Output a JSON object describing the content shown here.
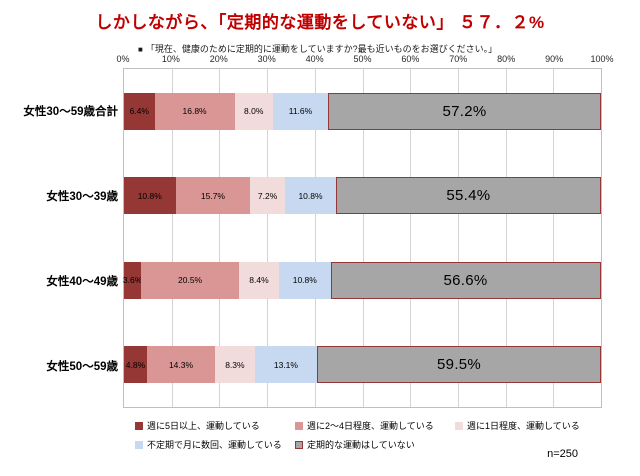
{
  "title": "しかしながら、「定期的な運動をしていない」 ５７．２%",
  "subtitle_marker": "■",
  "subtitle": "「現在、健康のために定期的に運動をしていますか?最も近いものをお選びください。」",
  "n_label": "n=250",
  "chart_data": {
    "type": "bar",
    "stacked": true,
    "orientation": "horizontal",
    "title": "しかしながら、「定期的な運動をしていない」 ５７．２%",
    "xlabel": "",
    "ylabel": "",
    "xlim": [
      0,
      100
    ],
    "ticks": [
      "0%",
      "10%",
      "20%",
      "30%",
      "40%",
      "50%",
      "60%",
      "70%",
      "80%",
      "90%",
      "100%"
    ],
    "grid": true,
    "legend_position": "bottom",
    "categories": [
      "女性30〜59歳合計",
      "女性30〜39歳",
      "女性40〜49歳",
      "女性50〜59歳"
    ],
    "series": [
      {
        "name": "週に5日以上、運動している",
        "color": "#953734",
        "values": [
          6.4,
          10.8,
          3.6,
          4.8
        ]
      },
      {
        "name": "週に2〜4日程度、運動している",
        "color": "#D99694",
        "values": [
          16.8,
          15.7,
          20.5,
          14.3
        ]
      },
      {
        "name": "週に1日程度、運動している",
        "color": "#F2DCDB",
        "values": [
          8.0,
          7.2,
          8.4,
          8.3
        ]
      },
      {
        "name": "不定期で月に数回、運動している",
        "color": "#C6D9F0",
        "values": [
          11.6,
          10.8,
          10.8,
          13.1
        ]
      },
      {
        "name": "定期的な運動はしていない",
        "color": "#A6A6A6",
        "border_color": "#953734",
        "values": [
          57.2,
          55.4,
          56.6,
          59.5
        ]
      }
    ]
  }
}
